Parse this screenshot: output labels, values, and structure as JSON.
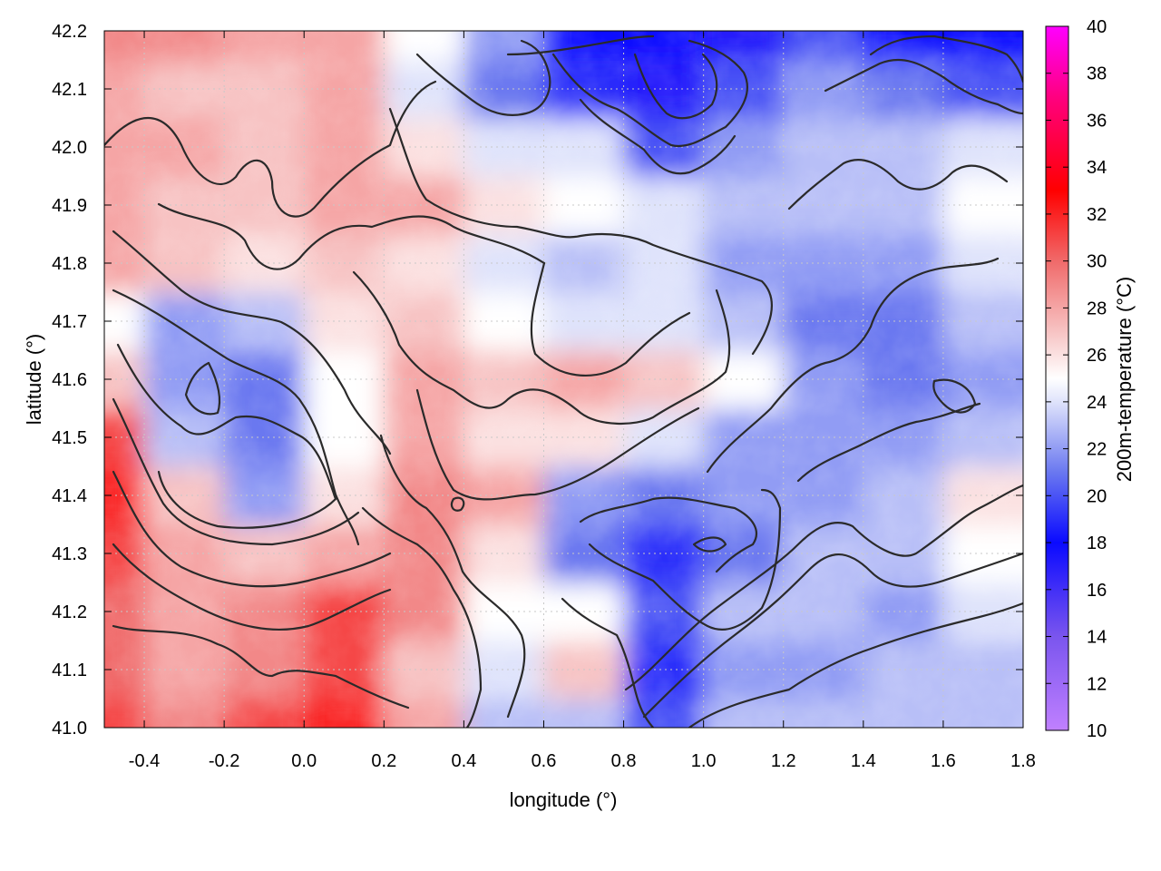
{
  "chart_data": {
    "type": "heatmap",
    "xlabel": "longitude (°)",
    "ylabel": "latitude (°)",
    "colorbar_label": "200m-temperature (°C)",
    "xlim": [
      -0.5,
      1.8
    ],
    "ylim": [
      41.0,
      42.2
    ],
    "zlim": [
      10,
      40
    ],
    "x_ticks": [
      -0.4,
      -0.2,
      0.0,
      0.2,
      0.4,
      0.6,
      0.8,
      1.0,
      1.2,
      1.4,
      1.6,
      1.8
    ],
    "x_tick_labels": [
      "-0.4",
      "-0.2",
      "0.0",
      "0.2",
      "0.4",
      "0.6",
      "0.8",
      "1.0",
      "1.2",
      "1.4",
      "1.6",
      "1.8"
    ],
    "y_ticks": [
      41.0,
      41.1,
      41.2,
      41.3,
      41.4,
      41.5,
      41.6,
      41.7,
      41.8,
      41.9,
      42.0,
      42.1,
      42.2
    ],
    "y_tick_labels": [
      "41.0",
      "41.1",
      "41.2",
      "41.3",
      "41.4",
      "41.5",
      "41.6",
      "41.7",
      "41.8",
      "41.9",
      "42.0",
      "42.1",
      "42.2"
    ],
    "colorbar_ticks": [
      10,
      12,
      14,
      16,
      18,
      20,
      22,
      24,
      26,
      28,
      30,
      32,
      34,
      36,
      38,
      40
    ],
    "colorbar_tick_labels": [
      "10",
      "12",
      "14",
      "16",
      "18",
      "20",
      "22",
      "24",
      "26",
      "28",
      "30",
      "32",
      "34",
      "36",
      "38",
      "40"
    ],
    "colormap": [
      [
        10,
        "#c080ff"
      ],
      [
        14,
        "#7a55ee"
      ],
      [
        18,
        "#0a0aff"
      ],
      [
        21,
        "#6a78f0"
      ],
      [
        24,
        "#dfe3fb"
      ],
      [
        25,
        "#ffffff"
      ],
      [
        27,
        "#f7c3c3"
      ],
      [
        30,
        "#f06a6a"
      ],
      [
        33,
        "#ff0000"
      ],
      [
        37,
        "#ff0080"
      ],
      [
        40,
        "#ff00ff"
      ]
    ],
    "grid": true,
    "contours": true,
    "field": {
      "x": [
        -0.5,
        -0.3,
        -0.1,
        0.1,
        0.3,
        0.5,
        0.7,
        0.9,
        1.1,
        1.3,
        1.5,
        1.7,
        1.8
      ],
      "y": [
        41.0,
        41.1,
        41.2,
        41.3,
        41.4,
        41.5,
        41.6,
        41.7,
        41.8,
        41.9,
        42.0,
        42.1,
        42.2
      ],
      "values": [
        [
          31,
          29,
          31,
          32,
          28,
          23,
          23,
          20,
          23,
          23,
          23,
          23,
          23
        ],
        [
          30,
          28,
          29,
          31,
          27,
          24,
          27,
          19,
          22,
          22,
          23,
          23,
          23
        ],
        [
          30,
          28,
          29,
          31,
          29,
          25,
          25,
          20,
          23,
          23,
          22,
          24,
          24
        ],
        [
          31,
          28,
          27,
          28,
          29,
          26,
          21,
          19,
          21,
          23,
          23,
          25,
          25
        ],
        [
          32,
          27,
          22,
          26,
          29,
          28,
          22,
          21,
          22,
          22,
          23,
          26,
          26
        ],
        [
          31,
          23,
          21,
          25,
          28,
          26,
          26,
          24,
          22,
          22,
          22,
          23,
          23
        ],
        [
          27,
          22,
          21,
          25,
          28,
          27,
          28,
          27,
          25,
          22,
          21,
          22,
          22
        ],
        [
          25,
          22,
          23,
          26,
          27,
          25,
          24,
          24,
          23,
          21,
          21,
          23,
          23
        ],
        [
          28,
          27,
          26,
          27,
          26,
          24,
          23,
          24,
          22,
          22,
          22,
          24,
          24
        ],
        [
          28,
          27,
          27,
          28,
          28,
          26,
          25,
          24,
          23,
          23,
          23,
          25,
          25
        ],
        [
          28,
          28,
          27,
          28,
          26,
          24,
          24,
          20,
          22,
          23,
          23,
          24,
          24
        ],
        [
          28,
          27,
          27,
          28,
          24,
          21,
          19,
          17,
          20,
          22,
          21,
          20,
          20
        ],
        [
          29,
          29,
          28,
          28,
          25,
          22,
          18,
          18,
          17,
          20,
          18,
          18,
          18
        ]
      ]
    }
  }
}
